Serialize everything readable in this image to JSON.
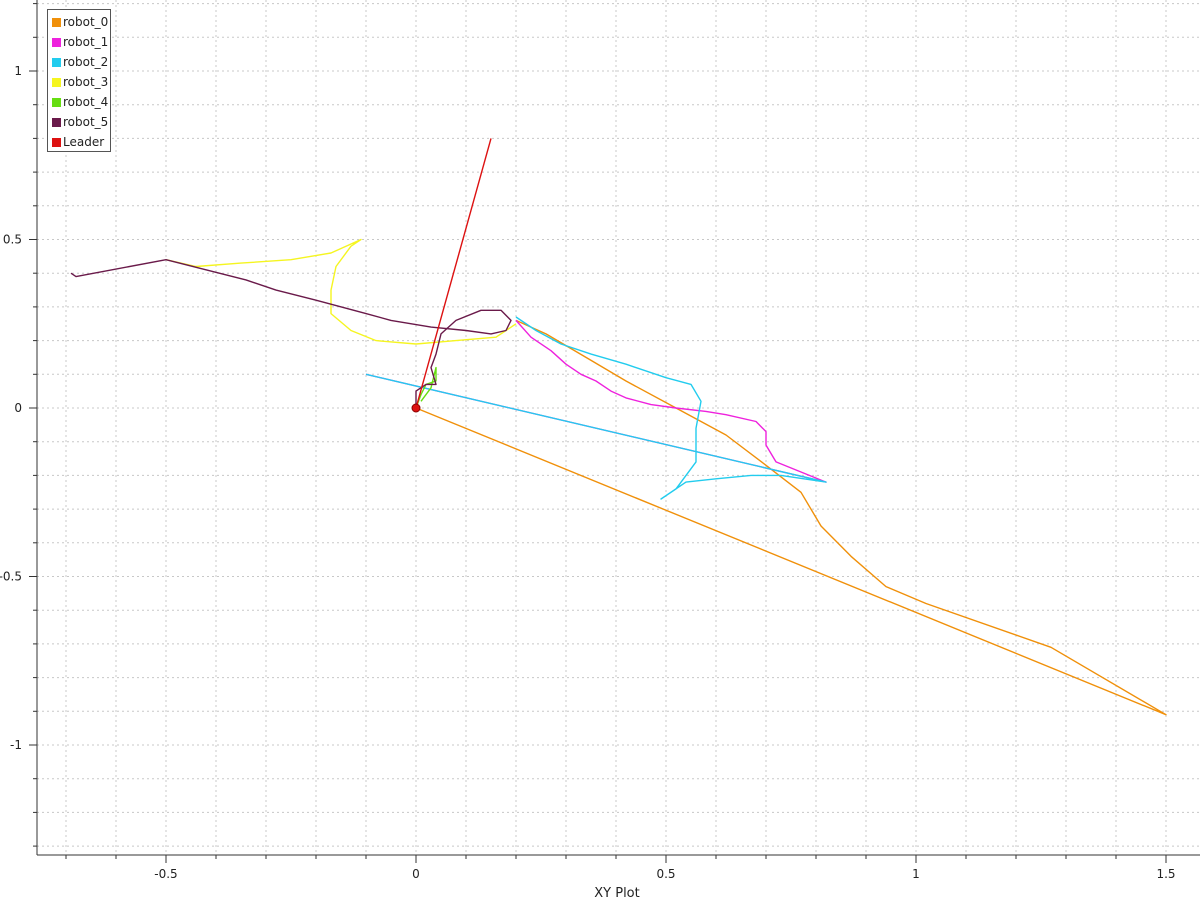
{
  "chart_data": {
    "type": "line",
    "xlabel": "XY Plot",
    "ylabel": "",
    "xlim": [
      -0.75,
      1.51
    ],
    "ylim": [
      -1.31,
      1.2
    ],
    "grid": true,
    "legend_position": "top-left",
    "x_ticks": [
      {
        "value": -0.5,
        "label": "-0.5"
      },
      {
        "value": 0,
        "label": "0"
      },
      {
        "value": 0.5,
        "label": "0.5"
      },
      {
        "value": 1,
        "label": "1"
      },
      {
        "value": 1.5,
        "label": "1.5"
      }
    ],
    "y_ticks": [
      {
        "value": 1,
        "label": "1"
      },
      {
        "value": 0.5,
        "label": "0.5"
      },
      {
        "value": 0,
        "label": "0"
      },
      {
        "value": -0.5,
        "label": "-0.5"
      },
      {
        "value": -1,
        "label": "-1"
      }
    ],
    "series": [
      {
        "name": "robot_0",
        "color": "#f0900a",
        "points": [
          [
            0,
            0
          ],
          [
            1.5,
            -0.91
          ],
          [
            1.27,
            -0.71
          ],
          [
            1.02,
            -0.58
          ],
          [
            0.94,
            -0.53
          ],
          [
            0.87,
            -0.44
          ],
          [
            0.81,
            -0.35
          ],
          [
            0.77,
            -0.25
          ],
          [
            0.7,
            -0.17
          ],
          [
            0.62,
            -0.08
          ],
          [
            0.52,
            0.0
          ],
          [
            0.42,
            0.08
          ],
          [
            0.34,
            0.15
          ],
          [
            0.26,
            0.22
          ],
          [
            0.2,
            0.26
          ]
        ]
      },
      {
        "name": "robot_1",
        "color": "#ee22dd",
        "points": [
          [
            0.2,
            0.26
          ],
          [
            0.23,
            0.21
          ],
          [
            0.27,
            0.17
          ],
          [
            0.3,
            0.13
          ],
          [
            0.33,
            0.1
          ],
          [
            0.36,
            0.08
          ],
          [
            0.39,
            0.05
          ],
          [
            0.42,
            0.03
          ],
          [
            0.47,
            0.01
          ],
          [
            0.52,
            0.0
          ],
          [
            0.58,
            -0.01
          ],
          [
            0.62,
            -0.02
          ],
          [
            0.68,
            -0.04
          ],
          [
            0.7,
            -0.07
          ],
          [
            0.7,
            -0.11
          ],
          [
            0.72,
            -0.16
          ],
          [
            0.82,
            -0.22
          ],
          [
            -0.1,
            0.1
          ]
        ]
      },
      {
        "name": "robot_2",
        "color": "#22ccee",
        "points": [
          [
            0.2,
            0.27
          ],
          [
            0.24,
            0.23
          ],
          [
            0.29,
            0.19
          ],
          [
            0.35,
            0.16
          ],
          [
            0.42,
            0.13
          ],
          [
            0.5,
            0.09
          ],
          [
            0.55,
            0.07
          ],
          [
            0.57,
            0.02
          ],
          [
            0.56,
            -0.06
          ],
          [
            0.56,
            -0.16
          ],
          [
            0.52,
            -0.24
          ],
          [
            0.49,
            -0.27
          ],
          [
            0.54,
            -0.22
          ],
          [
            0.6,
            -0.21
          ],
          [
            0.67,
            -0.2
          ],
          [
            0.73,
            -0.2
          ],
          [
            0.82,
            -0.22
          ],
          [
            -0.1,
            0.1
          ]
        ]
      },
      {
        "name": "robot_3",
        "color": "#f5f520",
        "points": [
          [
            0.2,
            0.25
          ],
          [
            0.16,
            0.21
          ],
          [
            0.08,
            0.2
          ],
          [
            0,
            0.19
          ],
          [
            -0.08,
            0.2
          ],
          [
            -0.13,
            0.23
          ],
          [
            -0.17,
            0.28
          ],
          [
            -0.17,
            0.35
          ],
          [
            -0.16,
            0.42
          ],
          [
            -0.13,
            0.48
          ],
          [
            -0.11,
            0.5
          ],
          [
            -0.17,
            0.46
          ],
          [
            -0.25,
            0.44
          ],
          [
            -0.35,
            0.43
          ],
          [
            -0.44,
            0.42
          ],
          [
            -0.5,
            0.44
          ]
        ]
      },
      {
        "name": "robot_4",
        "color": "#66dd11",
        "points": [
          [
            0,
            0
          ],
          [
            0.01,
            0.04
          ],
          [
            0.02,
            0.07
          ],
          [
            0.04,
            0.08
          ],
          [
            0.04,
            0.12
          ],
          [
            0.03,
            0.06
          ],
          [
            0.01,
            0.02
          ]
        ]
      },
      {
        "name": "robot_5",
        "color": "#6a1a4a",
        "points": [
          [
            -0.69,
            0.4
          ],
          [
            -0.68,
            0.39
          ],
          [
            -0.5,
            0.44
          ],
          [
            -0.42,
            0.41
          ],
          [
            -0.34,
            0.38
          ],
          [
            -0.28,
            0.35
          ],
          [
            -0.2,
            0.32
          ],
          [
            -0.1,
            0.28
          ],
          [
            -0.05,
            0.26
          ],
          [
            0.03,
            0.24
          ],
          [
            0.1,
            0.23
          ],
          [
            0.15,
            0.22
          ],
          [
            0.18,
            0.23
          ],
          [
            0.19,
            0.26
          ],
          [
            0.17,
            0.29
          ],
          [
            0.13,
            0.29
          ],
          [
            0.08,
            0.26
          ],
          [
            0.05,
            0.22
          ],
          [
            0.04,
            0.16
          ],
          [
            0.03,
            0.12
          ],
          [
            0.04,
            0.07
          ],
          [
            0.02,
            0.07
          ],
          [
            0,
            0.05
          ],
          [
            0,
            0.02
          ],
          [
            0,
            0
          ]
        ]
      },
      {
        "name": "Leader",
        "color": "#dd1111",
        "points": [
          [
            0,
            0
          ],
          [
            0.15,
            0.8
          ]
        ],
        "marker_at": [
          0,
          0
        ]
      }
    ]
  }
}
